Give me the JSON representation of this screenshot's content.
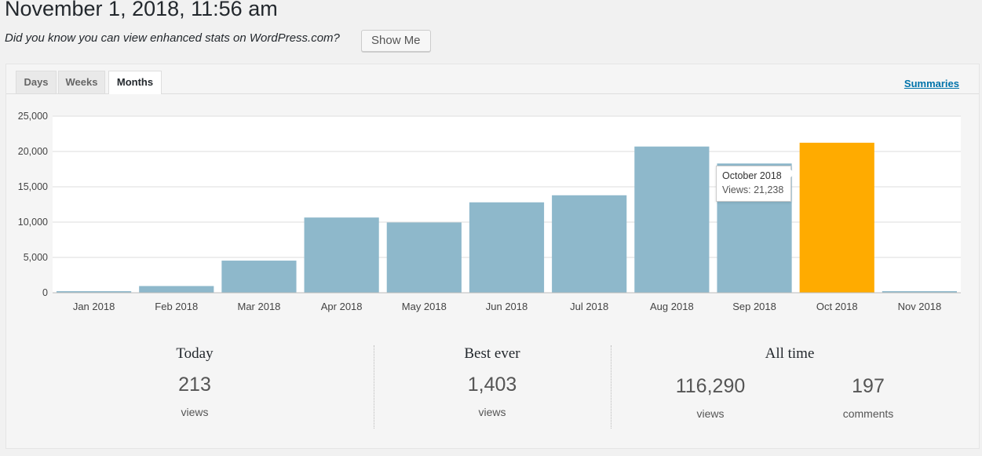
{
  "header": {
    "title": "November 1, 2018, 11:56 am",
    "promo_text": "Did you know you can view enhanced stats on WordPress.com?",
    "show_me_label": "Show Me"
  },
  "tabs": [
    {
      "label": "Days",
      "active": false
    },
    {
      "label": "Weeks",
      "active": false
    },
    {
      "label": "Months",
      "active": true
    }
  ],
  "summaries_link": "Summaries",
  "colors": {
    "bar": "#8eb8cb",
    "highlight": "#ffab00",
    "link": "#0073aa"
  },
  "chart_data": {
    "type": "bar",
    "categories": [
      "Jan 2018",
      "Feb 2018",
      "Mar 2018",
      "Apr 2018",
      "May 2018",
      "Jun 2018",
      "Jul 2018",
      "Aug 2018",
      "Sep 2018",
      "Oct 2018",
      "Nov 2018"
    ],
    "values": [
      60,
      950,
      4550,
      10650,
      9950,
      12800,
      13800,
      20700,
      18300,
      21238,
      213
    ],
    "highlight_index": 9,
    "y_ticks": [
      "0",
      "5,000",
      "10,000",
      "15,000",
      "20,000",
      "25,000"
    ],
    "ylim": [
      0,
      25000
    ],
    "grid": true
  },
  "tooltip": {
    "title": "October 2018",
    "views": "Views: 21,238"
  },
  "summary": {
    "today": {
      "heading": "Today",
      "value": "213",
      "unit": "views"
    },
    "best_ever": {
      "heading": "Best ever",
      "value": "1,403",
      "unit": "views"
    },
    "all_time": {
      "heading": "All time",
      "views_value": "116,290",
      "views_unit": "views",
      "comments_value": "197",
      "comments_unit": "comments"
    }
  }
}
